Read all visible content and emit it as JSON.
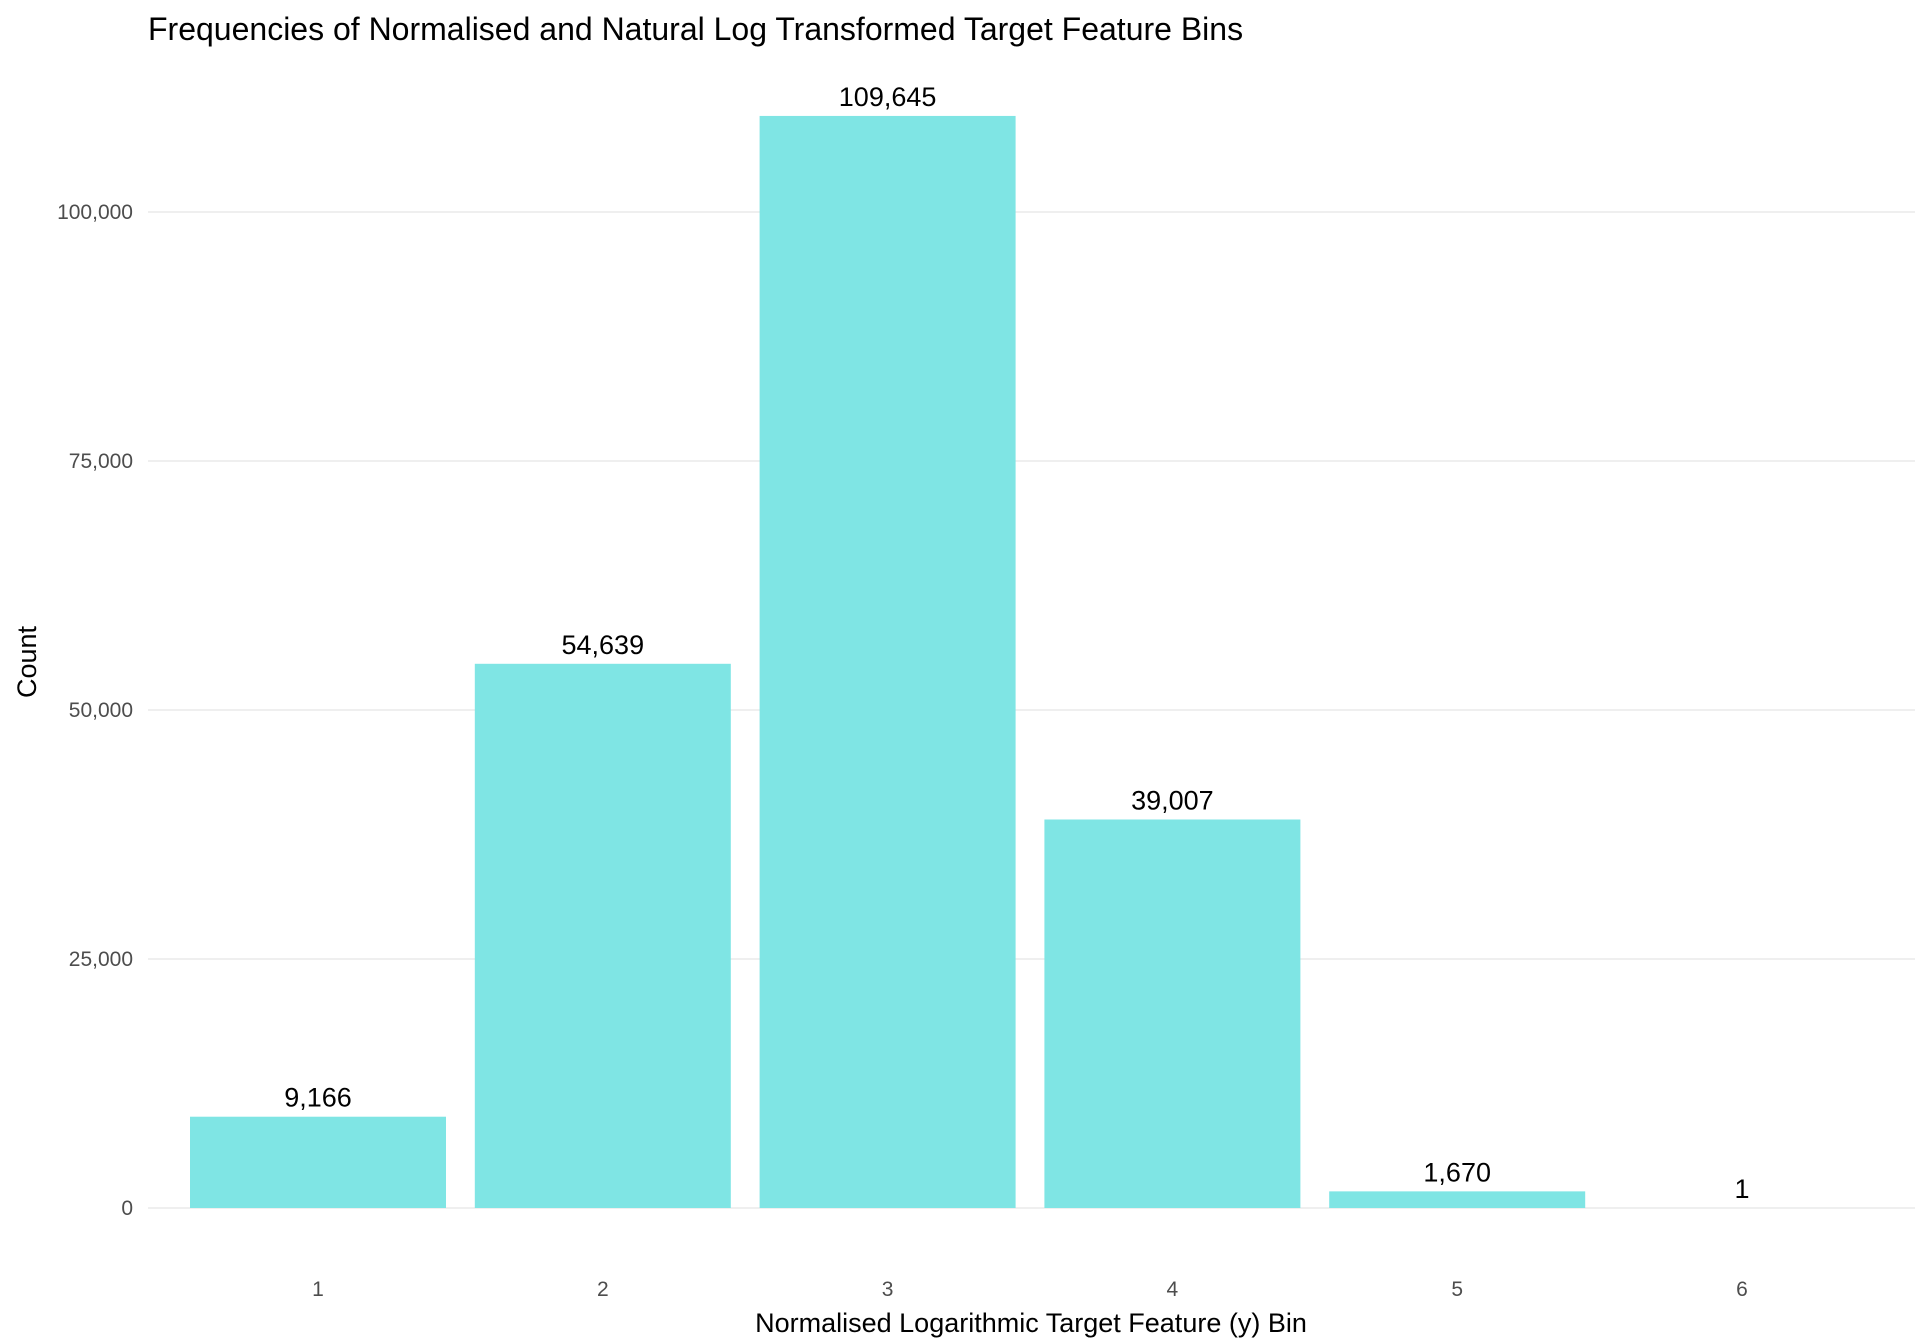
{
  "chart_data": {
    "type": "bar",
    "title": "Frequencies of Normalised and Natural Log Transformed Target Feature Bins",
    "xlabel": "Normalised Logarithmic Target Feature (y) Bin",
    "ylabel": "Count",
    "categories": [
      "1",
      "2",
      "3",
      "4",
      "5",
      "6"
    ],
    "values": [
      9166,
      54639,
      109645,
      39007,
      1670,
      1
    ],
    "value_labels": [
      "9,166",
      "54,639",
      "109,645",
      "39,007",
      "1,670",
      "1"
    ],
    "ylim": [
      0,
      115000
    ],
    "y_ticks": [
      0,
      25000,
      50000,
      75000,
      100000
    ],
    "y_tick_labels": [
      "0",
      "25,000",
      "50,000",
      "75,000",
      "100,000"
    ],
    "bar_color": "#7fe5e4",
    "grid": true,
    "legend": "none"
  }
}
